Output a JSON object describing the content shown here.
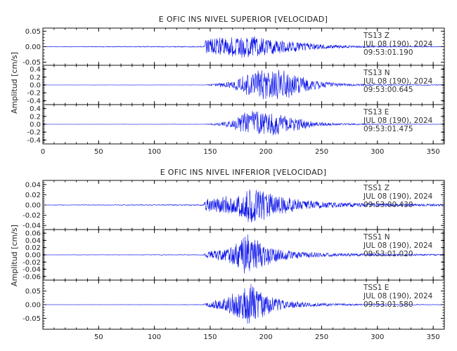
{
  "chart_data": [
    {
      "type": "line",
      "title": "E OFIC INS NIVEL SUPERIOR [VELOCIDAD]",
      "ylabel": "Amplitud [cm/s]",
      "xlim": [
        0,
        360
      ],
      "x_ticks": [
        0,
        50,
        100,
        150,
        200,
        250,
        300,
        350
      ],
      "x_tick_labels_shown": true,
      "line_color": "#0a12e8",
      "panels": [
        {
          "station": "TS13",
          "component": "Z",
          "date": "JUL 08 (190), 2024",
          "time": "09:53:01.190",
          "ylim": [
            -0.06,
            0.06
          ],
          "y_ticks": [
            0.05,
            0.0,
            -0.05
          ],
          "y_tick_labels": [
            "0.05",
            "0.00",
            "-0.05"
          ],
          "envelope": [
            [
              0,
              0.001
            ],
            [
              145,
              0.002
            ],
            [
              146,
              0.032
            ],
            [
              165,
              0.032
            ],
            [
              178,
              0.036
            ],
            [
              188,
              0.04
            ],
            [
              200,
              0.03
            ],
            [
              215,
              0.02
            ],
            [
              230,
              0.016
            ],
            [
              250,
              0.008
            ],
            [
              275,
              0.004
            ],
            [
              300,
              0.002
            ],
            [
              360,
              0.001
            ]
          ],
          "freq": 0.9
        },
        {
          "station": "TS13",
          "component": "N",
          "date": "JUL 08 (190), 2024",
          "time": "09:53:00.645",
          "ylim": [
            -0.5,
            0.5
          ],
          "y_ticks": [
            0.4,
            0.2,
            0.0,
            -0.2,
            -0.4
          ],
          "y_tick_labels": [
            "0.4",
            "0.2",
            "0.0",
            "-0.2",
            "-0.4"
          ],
          "envelope": [
            [
              0,
              0.002
            ],
            [
              145,
              0.005
            ],
            [
              155,
              0.04
            ],
            [
              170,
              0.1
            ],
            [
              185,
              0.3
            ],
            [
              195,
              0.4
            ],
            [
              205,
              0.36
            ],
            [
              215,
              0.42
            ],
            [
              222,
              0.35
            ],
            [
              232,
              0.22
            ],
            [
              245,
              0.12
            ],
            [
              262,
              0.05
            ],
            [
              290,
              0.02
            ],
            [
              360,
              0.01
            ]
          ],
          "freq": 0.55
        },
        {
          "station": "TS13",
          "component": "E",
          "date": "JUL 08 (190), 2024",
          "time": "09:53:01.475",
          "ylim": [
            -0.5,
            0.5
          ],
          "y_ticks": [
            0.4,
            0.2,
            0.0,
            -0.2,
            -0.4
          ],
          "y_tick_labels": [
            "0.4",
            "0.2",
            "0.0",
            "-0.2",
            "-0.4"
          ],
          "envelope": [
            [
              0,
              0.002
            ],
            [
              145,
              0.005
            ],
            [
              155,
              0.03
            ],
            [
              170,
              0.1
            ],
            [
              180,
              0.3
            ],
            [
              190,
              0.4
            ],
            [
              198,
              0.28
            ],
            [
              208,
              0.3
            ],
            [
              220,
              0.2
            ],
            [
              232,
              0.14
            ],
            [
              245,
              0.06
            ],
            [
              265,
              0.03
            ],
            [
              300,
              0.01
            ],
            [
              360,
              0.005
            ]
          ],
          "freq": 0.55
        }
      ]
    },
    {
      "type": "line",
      "title": "E OFIC INS NIVEL INFERIOR [VELOCIDAD]",
      "ylabel": "Amplitud [cm/s]",
      "xlim": [
        0,
        360
      ],
      "x_ticks": [
        0,
        50,
        100,
        150,
        200,
        250,
        300,
        350
      ],
      "x_tick_labels": [
        "",
        "50",
        "100",
        "150",
        "200",
        "250",
        "300",
        "350"
      ],
      "x_tick_labels_shown": true,
      "line_color": "#0a12e8",
      "panels": [
        {
          "station": "TSS1",
          "component": "Z",
          "date": "JUL 08 (190), 2024",
          "time": "09:53:00.430",
          "ylim": [
            -0.048,
            0.048
          ],
          "y_ticks": [
            0.04,
            0.02,
            0.0,
            -0.02,
            -0.04
          ],
          "y_tick_labels": [
            "0.04",
            "0.02",
            "0.00",
            "-0.02",
            "-0.04"
          ],
          "envelope": [
            [
              0,
              0.0005
            ],
            [
              144,
              0.001
            ],
            [
              146,
              0.014
            ],
            [
              160,
              0.016
            ],
            [
              172,
              0.02
            ],
            [
              180,
              0.03
            ],
            [
              188,
              0.045
            ],
            [
              195,
              0.032
            ],
            [
              205,
              0.024
            ],
            [
              222,
              0.014
            ],
            [
              240,
              0.009
            ],
            [
              260,
              0.006
            ],
            [
              285,
              0.004
            ],
            [
              310,
              0.003
            ],
            [
              360,
              0.002
            ]
          ],
          "freq": 0.9
        },
        {
          "station": "TSS1",
          "component": "N",
          "date": "JUL 08 (190), 2024",
          "time": "09:53:01.020",
          "ylim": [
            -0.07,
            0.07
          ],
          "y_ticks": [
            0.06,
            0.04,
            0.02,
            0.0,
            -0.02,
            -0.04,
            -0.06
          ],
          "y_tick_labels": [
            "0.06",
            "0.04",
            "0.02",
            "0.00",
            "-0.02",
            "-0.04",
            "-0.06"
          ],
          "envelope": [
            [
              0,
              0.0005
            ],
            [
              144,
              0.001
            ],
            [
              148,
              0.01
            ],
            [
              165,
              0.02
            ],
            [
              175,
              0.04
            ],
            [
              182,
              0.062
            ],
            [
              190,
              0.05
            ],
            [
              200,
              0.03
            ],
            [
              215,
              0.016
            ],
            [
              235,
              0.009
            ],
            [
              260,
              0.005
            ],
            [
              300,
              0.003
            ],
            [
              360,
              0.002
            ]
          ],
          "freq": 0.8
        },
        {
          "station": "TSS1",
          "component": "E",
          "date": "JUL 08 (190), 2024",
          "time": "09:53:01.580",
          "ylim": [
            -0.09,
            0.09
          ],
          "y_ticks": [
            0.05,
            0.0,
            -0.05
          ],
          "y_tick_labels": [
            "0.05",
            "0.00",
            "-0.05"
          ],
          "envelope": [
            [
              0,
              0.0005
            ],
            [
              144,
              0.001
            ],
            [
              148,
              0.01
            ],
            [
              165,
              0.03
            ],
            [
              178,
              0.06
            ],
            [
              185,
              0.085
            ],
            [
              192,
              0.06
            ],
            [
              205,
              0.03
            ],
            [
              220,
              0.015
            ],
            [
              240,
              0.008
            ],
            [
              265,
              0.004
            ],
            [
              300,
              0.002
            ],
            [
              360,
              0.001
            ]
          ],
          "freq": 0.8
        }
      ]
    }
  ]
}
